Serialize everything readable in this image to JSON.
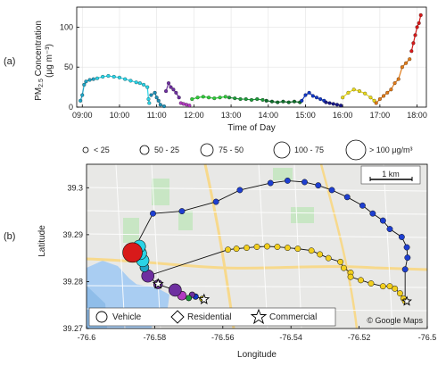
{
  "chart_data": [
    {
      "type": "scatter",
      "panel_label": "(a)",
      "xlabel": "Time of Day",
      "ylabel_main": "PM",
      "ylabel_sub": "2.5",
      "ylabel_rest": " Concentration",
      "ylabel_units": "(μg m⁻³)",
      "xlim": [
        8.85,
        18.25
      ],
      "ylim": [
        0,
        125
      ],
      "xticks": [
        "09:00",
        "10:00",
        "11:00",
        "12:00",
        "13:00",
        "14:00",
        "15:00",
        "16:00",
        "17:00",
        "18:00"
      ],
      "xtick_values": [
        9,
        10,
        11,
        12,
        13,
        14,
        15,
        16,
        17,
        18
      ],
      "yticks": [
        0,
        50,
        100
      ],
      "grid": true,
      "series": [
        {
          "color": "#1fa5c7",
          "x": [
            8.95,
            9.0,
            9.05,
            9.1,
            9.2,
            9.3
          ],
          "y": [
            8,
            15,
            28,
            32,
            34,
            35
          ]
        },
        {
          "color": "#2ad3e6",
          "x": [
            9.4,
            9.55,
            9.7,
            9.85,
            10.0,
            10.15,
            10.3,
            10.45,
            10.55,
            10.65,
            10.75,
            10.78,
            10.8
          ],
          "y": [
            36,
            38,
            39,
            38,
            37,
            35,
            33,
            31,
            30,
            28,
            25,
            10,
            5
          ]
        },
        {
          "color": "#1f8fb5",
          "x": [
            10.85,
            10.95,
            11.0,
            11.05,
            11.1,
            11.2
          ],
          "y": [
            15,
            18,
            12,
            8,
            3,
            1
          ]
        },
        {
          "color": "#6e2fa0",
          "x": [
            11.25,
            11.32,
            11.38,
            11.45,
            11.52,
            11.6
          ],
          "y": [
            20,
            30,
            25,
            22,
            18,
            12
          ]
        },
        {
          "color": "#b23cc0",
          "x": [
            11.65,
            11.72,
            11.8,
            11.88
          ],
          "y": [
            5,
            4,
            3,
            2
          ]
        },
        {
          "color": "#2fcc3a",
          "x": [
            11.95,
            12.1,
            12.25,
            12.4,
            12.55,
            12.7,
            12.85
          ],
          "y": [
            10,
            12,
            13,
            12,
            11,
            12,
            13
          ]
        },
        {
          "color": "#1e9b3a",
          "x": [
            12.95,
            13.1,
            13.25,
            13.4,
            13.55,
            13.7,
            13.85
          ],
          "y": [
            12,
            11,
            10,
            10,
            9,
            10,
            9
          ]
        },
        {
          "color": "#0e6e2a",
          "x": [
            13.95,
            14.1,
            14.25,
            14.4,
            14.55,
            14.7,
            14.85
          ],
          "y": [
            8,
            7,
            6,
            7,
            6,
            7,
            6
          ]
        },
        {
          "color": "#1238c6",
          "x": [
            14.9,
            15.0,
            15.1,
            15.2,
            15.3,
            15.4,
            15.5
          ],
          "y": [
            8,
            15,
            18,
            14,
            12,
            10,
            8
          ]
        },
        {
          "color": "#1a1a8a",
          "x": [
            15.55,
            15.65,
            15.75,
            15.85,
            15.95
          ],
          "y": [
            6,
            5,
            4,
            3,
            2
          ]
        },
        {
          "color": "#e8d81a",
          "x": [
            16.0,
            16.15,
            16.3,
            16.45,
            16.6,
            16.75,
            16.85
          ],
          "y": [
            12,
            18,
            22,
            20,
            17,
            12,
            8
          ]
        },
        {
          "color": "#e07b1a",
          "x": [
            16.9,
            17.0,
            17.1,
            17.2,
            17.3,
            17.4,
            17.5,
            17.6,
            17.7,
            17.8
          ],
          "y": [
            5,
            10,
            14,
            18,
            22,
            30,
            35,
            50,
            55,
            60
          ]
        },
        {
          "color": "#d81a1a",
          "x": [
            17.85,
            17.9,
            17.95,
            18.0,
            18.05,
            18.1
          ],
          "y": [
            70,
            80,
            90,
            100,
            105,
            115
          ]
        }
      ]
    },
    {
      "type": "scatter",
      "panel_label": "(b)",
      "xlabel": "Longitude",
      "ylabel": "Latitude",
      "xlim": [
        -76.6,
        -76.5
      ],
      "ylim": [
        39.27,
        39.305
      ],
      "xticks": [
        "-76.6",
        "-76.58",
        "-76.56",
        "-76.54",
        "-76.52",
        "-76.5"
      ],
      "xtick_values": [
        -76.6,
        -76.58,
        -76.56,
        -76.54,
        -76.52,
        -76.5
      ],
      "yticks": [
        "39.27",
        "39.28",
        "39.29",
        "39.3"
      ],
      "ytick_values": [
        39.27,
        39.28,
        39.29,
        39.3
      ],
      "scale_bar_label": "1 km",
      "attribution": "© Google Maps",
      "size_legend": [
        "< 25",
        "50 - 25",
        "75 - 50",
        "100 - 75",
        "> 100 μg/m³"
      ],
      "marker_legend": [
        "Vehicle",
        "Residential",
        "Commercial"
      ],
      "map_colors": {
        "land": "#e8e8e6",
        "water": "#a9cdf2",
        "park": "#c8e6c4",
        "road": "#ffffff",
        "highway": "#f7d98c"
      },
      "route": {
        "blue": [
          [
            -76.5805,
            39.2945
          ],
          [
            -76.572,
            39.295
          ],
          [
            -76.562,
            39.297
          ],
          [
            -76.555,
            39.2995
          ],
          [
            -76.546,
            39.301
          ],
          [
            -76.541,
            39.3015
          ],
          [
            -76.536,
            39.3012
          ],
          [
            -76.532,
            39.3005
          ],
          [
            -76.528,
            39.2995
          ],
          [
            -76.5235,
            39.298
          ],
          [
            -76.519,
            39.2962
          ],
          [
            -76.516,
            39.2945
          ],
          [
            -76.513,
            39.293
          ],
          [
            -76.511,
            39.2912
          ],
          [
            -76.5075,
            39.2895
          ],
          [
            -76.506,
            39.2873
          ],
          [
            -76.5058,
            39.2851
          ],
          [
            -76.5065,
            39.2826
          ]
        ],
        "yellow": [
          [
            -76.5585,
            39.2868
          ],
          [
            -76.556,
            39.287
          ],
          [
            -76.553,
            39.2872
          ],
          [
            -76.55,
            39.2874
          ],
          [
            -76.547,
            39.2875
          ],
          [
            -76.544,
            39.2874
          ],
          [
            -76.541,
            39.2872
          ],
          [
            -76.538,
            39.287
          ],
          [
            -76.534,
            39.2866
          ],
          [
            -76.5315,
            39.2858
          ],
          [
            -76.529,
            39.285
          ],
          [
            -76.5255,
            39.2842
          ],
          [
            -76.5245,
            39.2829
          ],
          [
            -76.5225,
            39.2819
          ],
          [
            -76.5225,
            39.281
          ],
          [
            -76.5195,
            39.2803
          ],
          [
            -76.5165,
            39.2796
          ],
          [
            -76.513,
            39.279
          ],
          [
            -76.511,
            39.279
          ],
          [
            -76.5095,
            39.2785
          ],
          [
            -76.508,
            39.2775
          ],
          [
            -76.507,
            39.2764
          ],
          [
            -76.5065,
            39.2758
          ]
        ],
        "ends": [
          {
            "color": "#d81a1a",
            "lon": -76.5865,
            "lat": 39.2862,
            "size": 5
          },
          {
            "color": "#2ad3e6",
            "lon": -76.5845,
            "lat": 39.2875,
            "size": 3
          },
          {
            "color": "#2ad3e6",
            "lon": -76.5842,
            "lat": 39.286,
            "size": 3
          },
          {
            "color": "#2ad3e6",
            "lon": -76.5835,
            "lat": 39.2845,
            "size": 3
          },
          {
            "color": "#1fa5c7",
            "lon": -76.583,
            "lat": 39.283,
            "size": 2
          },
          {
            "color": "#6e2fa0",
            "lon": -76.582,
            "lat": 39.2812,
            "size": 3
          },
          {
            "color": "#6e2fa0",
            "lon": -76.579,
            "lat": 39.2794,
            "size": 2
          },
          {
            "color": "#6e2fa0",
            "lon": -76.574,
            "lat": 39.2782,
            "size": 3
          },
          {
            "color": "#b23cc0",
            "lon": -76.572,
            "lat": 39.277,
            "size": 2
          },
          {
            "color": "#1e9b3a",
            "lon": -76.57,
            "lat": 39.2765,
            "size": 1
          },
          {
            "color": "#6e2fa0",
            "lon": -76.569,
            "lat": 39.2772,
            "size": 1
          },
          {
            "color": "#1238c6",
            "lon": -76.568,
            "lat": 39.2768,
            "size": 1
          },
          {
            "color": "#e8d81a",
            "lon": -76.566,
            "lat": 39.2763,
            "size": 1
          }
        ]
      }
    }
  ]
}
